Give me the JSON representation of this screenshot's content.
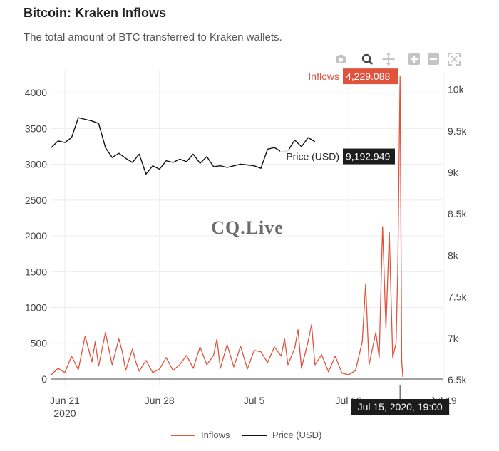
{
  "header": {
    "title": "Bitcoin: Kraken Inflows",
    "subtitle": "The total amount of BTC transferred to Kraken wallets."
  },
  "modebar": {
    "icons": [
      "camera-icon",
      "zoom-icon",
      "pan-icon",
      "zoom-in-icon",
      "zoom-out-icon",
      "autoscale-icon"
    ]
  },
  "watermark": "CQ.Live",
  "colors": {
    "inflows": "#e0533d",
    "price": "#111111",
    "grid": "#ececec",
    "hover_inflows_bg": "#e0533d",
    "hover_price_bg": "#1c1c1c"
  },
  "hover": {
    "inflows_label": "Inflows",
    "inflows_value": "4,229.088",
    "price_label": "Price (USD)",
    "price_value": "9,192.949",
    "x_label": "Jul 15, 2020, 19:00"
  },
  "chart_data": {
    "type": "line",
    "x_range": [
      "2020-06-20",
      "2020-07-19"
    ],
    "x_ticks": [
      {
        "date": "2020-06-21",
        "label": "Jun 21",
        "sublabel": "2020"
      },
      {
        "date": "2020-06-28",
        "label": "Jun 28"
      },
      {
        "date": "2020-07-05",
        "label": "Jul 5"
      },
      {
        "date": "2020-07-12",
        "label": "Jul 12"
      },
      {
        "date": "2020-07-19",
        "label": "Jul 19"
      }
    ],
    "y_left": {
      "range": [
        -80,
        4300
      ],
      "ticks": [
        0,
        500,
        1000,
        1500,
        2000,
        2500,
        3000,
        3500,
        4000
      ]
    },
    "y_right": {
      "range": [
        6440,
        10220
      ],
      "ticks": [
        6500,
        7000,
        7500,
        8000,
        8500,
        9000,
        9500,
        10000
      ],
      "tick_labels": [
        "6.5k",
        "7k",
        "7.5k",
        "8k",
        "8.5k",
        "9k",
        "9.5k",
        "10k"
      ]
    },
    "grid": true,
    "legend_position": "bottom-center",
    "series": [
      {
        "name": "Inflows",
        "axis": "left",
        "color": "#e0533d",
        "x": [
          "2020-06-20",
          "2020-06-20 12:00",
          "2020-06-21",
          "2020-06-21 12:00",
          "2020-06-22",
          "2020-06-22 12:00",
          "2020-06-23",
          "2020-06-23 06:00",
          "2020-06-23 12:00",
          "2020-06-24",
          "2020-06-24 12:00",
          "2020-06-25",
          "2020-06-25 06:00",
          "2020-06-25 12:00",
          "2020-06-26",
          "2020-06-26 06:00",
          "2020-06-26 12:00",
          "2020-06-27",
          "2020-06-27 12:00",
          "2020-06-28",
          "2020-06-28 12:00",
          "2020-06-29",
          "2020-06-29 12:00",
          "2020-06-30",
          "2020-06-30 12:00",
          "2020-07-01",
          "2020-07-01 12:00",
          "2020-07-02",
          "2020-07-02 06:00",
          "2020-07-02 12:00",
          "2020-07-03",
          "2020-07-03 12:00",
          "2020-07-04",
          "2020-07-04 12:00",
          "2020-07-05",
          "2020-07-05 12:00",
          "2020-07-06",
          "2020-07-06 12:00",
          "2020-07-07",
          "2020-07-07 06:00",
          "2020-07-07 12:00",
          "2020-07-08",
          "2020-07-08 06:00",
          "2020-07-08 12:00",
          "2020-07-09",
          "2020-07-09 06:00",
          "2020-07-09 12:00",
          "2020-07-10",
          "2020-07-10 12:00",
          "2020-07-11",
          "2020-07-11 12:00",
          "2020-07-12",
          "2020-07-12 12:00",
          "2020-07-13",
          "2020-07-13 06:00",
          "2020-07-13 12:00",
          "2020-07-14",
          "2020-07-14 06:00",
          "2020-07-14 12:00",
          "2020-07-14 18:00",
          "2020-07-15",
          "2020-07-15 06:00",
          "2020-07-15 12:00",
          "2020-07-15 15:00",
          "2020-07-15 19:00",
          "2020-07-15 22:00",
          "2020-07-16"
        ],
        "values": [
          60,
          150,
          90,
          320,
          130,
          600,
          240,
          520,
          180,
          650,
          200,
          560,
          380,
          120,
          420,
          240,
          110,
          260,
          90,
          140,
          300,
          120,
          200,
          330,
          150,
          450,
          200,
          330,
          560,
          150,
          480,
          170,
          460,
          140,
          400,
          380,
          230,
          450,
          320,
          560,
          200,
          430,
          690,
          150,
          530,
          760,
          200,
          340,
          100,
          320,
          80,
          60,
          120,
          520,
          1330,
          200,
          650,
          300,
          2130,
          700,
          2050,
          300,
          500,
          1500,
          4229.088,
          250,
          30
        ]
      },
      {
        "name": "Price (USD)",
        "axis": "right",
        "color": "#111111",
        "x": [
          "2020-06-20",
          "2020-06-20 12:00",
          "2020-06-21",
          "2020-06-21 12:00",
          "2020-06-22",
          "2020-06-22 12:00",
          "2020-06-23",
          "2020-06-23 12:00",
          "2020-06-24",
          "2020-06-24 12:00",
          "2020-06-25",
          "2020-06-25 12:00",
          "2020-06-26",
          "2020-06-26 12:00",
          "2020-06-27",
          "2020-06-27 12:00",
          "2020-06-28",
          "2020-06-28 12:00",
          "2020-06-29",
          "2020-06-29 12:00",
          "2020-06-30",
          "2020-06-30 12:00",
          "2020-07-01",
          "2020-07-01 12:00",
          "2020-07-02",
          "2020-07-02 12:00",
          "2020-07-03",
          "2020-07-03 12:00",
          "2020-07-04",
          "2020-07-04 12:00",
          "2020-07-05",
          "2020-07-05 12:00",
          "2020-07-06",
          "2020-07-06 12:00",
          "2020-07-07",
          "2020-07-07 12:00",
          "2020-07-08",
          "2020-07-08 12:00",
          "2020-07-09",
          "2020-07-09 12:00"
        ],
        "values": [
          9300,
          9380,
          9360,
          9420,
          9660,
          9640,
          9620,
          9590,
          9300,
          9180,
          9230,
          9170,
          9120,
          9220,
          8980,
          9080,
          9040,
          9140,
          9120,
          9160,
          9130,
          9220,
          9110,
          9190,
          9070,
          9080,
          9060,
          9080,
          9100,
          9090,
          9080,
          9050,
          9280,
          9300,
          9250,
          9260,
          9390,
          9310,
          9420,
          9370
        ]
      }
    ],
    "annotations": [
      "CQ.Live"
    ]
  }
}
